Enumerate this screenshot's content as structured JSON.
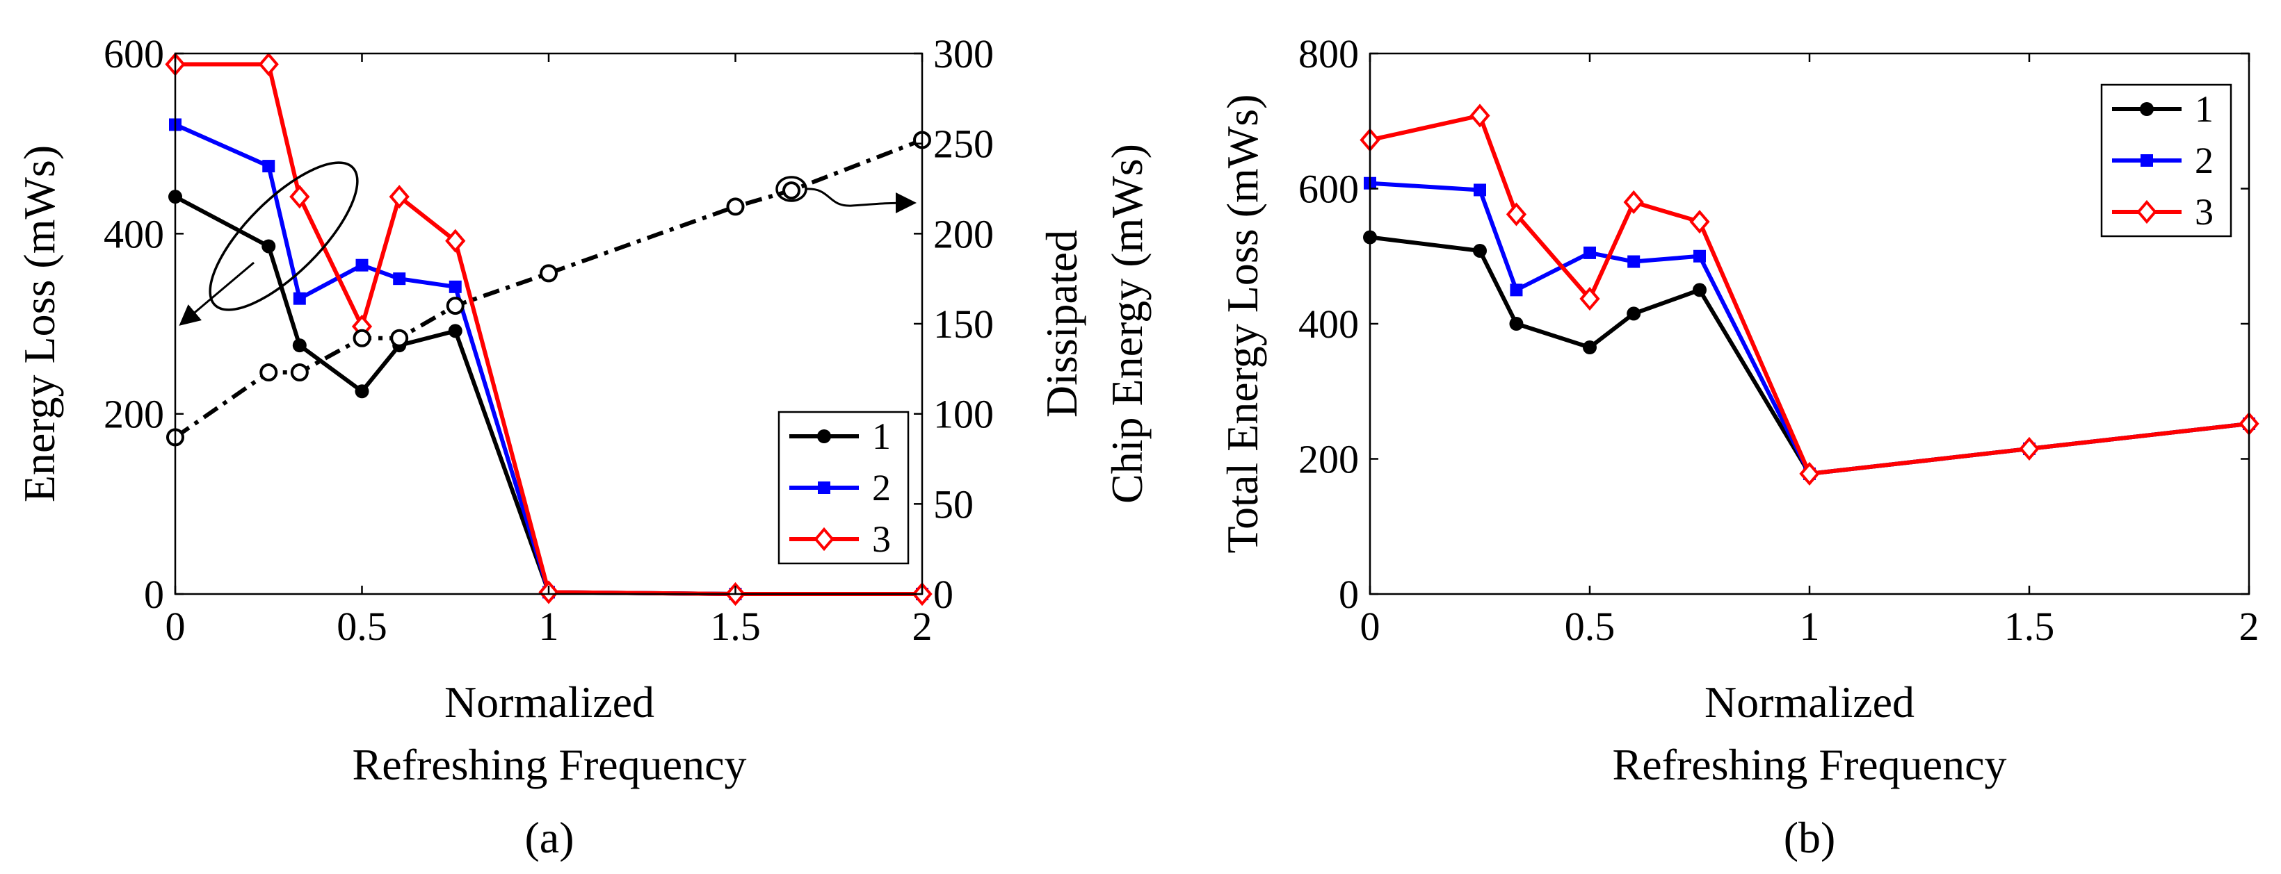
{
  "figure": {
    "caption_a": "(a)",
    "caption_b": "(b)"
  },
  "chart_data": [
    {
      "type": "line",
      "panel": "(a)",
      "xlabel_line1": "Normalized",
      "xlabel_line2": "Refreshing Frequency",
      "ylabel": "Energy Loss (mWs)",
      "y2label_line1": "Dissipated",
      "y2label_line2": "Chip Energy (mWs)",
      "xlim": [
        0,
        2
      ],
      "ylim": [
        0,
        600
      ],
      "y2lim": [
        0,
        300
      ],
      "xticks": [
        0,
        0.5,
        1,
        1.5,
        2
      ],
      "xtick_labels": [
        "0",
        "0.5",
        "1",
        "1.5",
        "2"
      ],
      "yticks": [
        0,
        200,
        400,
        600
      ],
      "ytick_labels": [
        "0",
        "200",
        "400",
        "600"
      ],
      "y2ticks": [
        0,
        50,
        100,
        150,
        200,
        250,
        300
      ],
      "y2tick_labels": [
        "0",
        "50",
        "100",
        "150",
        "200",
        "250",
        "300"
      ],
      "legend_position": "bottom-right",
      "series": [
        {
          "name": "1",
          "color": "#000000",
          "marker": "circle",
          "x": [
            0,
            0.25,
            0.333,
            0.5,
            0.6,
            0.75,
            1,
            1.5,
            2
          ],
          "y": [
            441,
            386,
            276,
            225,
            276,
            292,
            2,
            0,
            0
          ]
        },
        {
          "name": "2",
          "color": "#0000ff",
          "marker": "square",
          "x": [
            0,
            0.25,
            0.333,
            0.5,
            0.6,
            0.75,
            1,
            1.5,
            2
          ],
          "y": [
            521,
            475,
            328,
            365,
            350,
            341,
            2,
            0,
            0
          ]
        },
        {
          "name": "3",
          "color": "#ff0000",
          "marker": "diamond",
          "x": [
            0,
            0.25,
            0.333,
            0.5,
            0.6,
            0.75,
            1,
            1.5,
            2
          ],
          "y": [
            588,
            588,
            441,
            297,
            441,
            392,
            2,
            0,
            0
          ]
        }
      ],
      "dissipated_series": {
        "name": "Dissipated Chip Energy",
        "axis": "right",
        "color": "#000000",
        "marker": "open-circle",
        "style": "dash-dot",
        "x": [
          0,
          0.25,
          0.333,
          0.5,
          0.6,
          0.75,
          1,
          1.5,
          1.65,
          2
        ],
        "y": [
          87,
          123,
          123,
          142,
          142,
          160,
          178,
          215,
          224,
          252
        ]
      }
    },
    {
      "type": "line",
      "panel": "(b)",
      "xlabel_line1": "Normalized",
      "xlabel_line2": "Refreshing Frequency",
      "ylabel": "Total Energy Loss (mWs)",
      "xlim": [
        0,
        2
      ],
      "ylim": [
        0,
        800
      ],
      "xticks": [
        0,
        0.5,
        1,
        1.5,
        2
      ],
      "xtick_labels": [
        "0",
        "0.5",
        "1",
        "1.5",
        "2"
      ],
      "yticks": [
        0,
        200,
        400,
        600,
        800
      ],
      "ytick_labels": [
        "0",
        "200",
        "400",
        "600",
        "800"
      ],
      "legend_position": "top-right",
      "series": [
        {
          "name": "1",
          "color": "#000000",
          "marker": "circle",
          "x": [
            0,
            0.25,
            0.333,
            0.5,
            0.6,
            0.75,
            1,
            1.5,
            2
          ],
          "y": [
            528,
            508,
            400,
            365,
            415,
            450,
            178,
            215,
            252
          ]
        },
        {
          "name": "2",
          "color": "#0000ff",
          "marker": "square",
          "x": [
            0,
            0.25,
            0.333,
            0.5,
            0.6,
            0.75,
            1,
            1.5,
            2
          ],
          "y": [
            608,
            598,
            450,
            505,
            492,
            500,
            178,
            215,
            252
          ]
        },
        {
          "name": "3",
          "color": "#ff0000",
          "marker": "diamond",
          "x": [
            0,
            0.25,
            0.333,
            0.5,
            0.6,
            0.75,
            1,
            1.5,
            2
          ],
          "y": [
            672,
            708,
            562,
            437,
            580,
            551,
            178,
            215,
            252
          ]
        }
      ]
    }
  ]
}
